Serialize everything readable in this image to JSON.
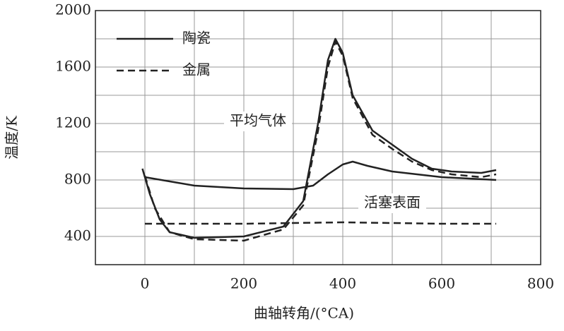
{
  "chart_data": {
    "type": "line",
    "x_label": "曲轴转角/(°CA)",
    "y_label": "温度/K",
    "xlim": [
      -100,
      800
    ],
    "ylim": [
      200,
      2000
    ],
    "xticks": [
      0,
      200,
      400,
      600,
      800
    ],
    "yticks": [
      400,
      800,
      1200,
      1600,
      2000
    ],
    "x_minor_grid": [
      -100,
      100,
      300,
      500,
      700
    ],
    "y_minor_grid": [
      600,
      1000,
      1400,
      1800
    ],
    "grid": true,
    "color": "#222222",
    "legend": [
      {
        "label": "陶瓷",
        "dash": "solid"
      },
      {
        "label": "金属",
        "dash": "dashed"
      }
    ],
    "annotations": [
      "平均气体",
      "活塞表面"
    ],
    "series": [
      {
        "dash": "solid",
        "x": [
          -5,
          10,
          30,
          50,
          100,
          200,
          280,
          320,
          350,
          370,
          385,
          400,
          420,
          460,
          500,
          540,
          580,
          620,
          680,
          710
        ],
        "values": [
          880,
          700,
          520,
          430,
          390,
          400,
          470,
          650,
          1200,
          1650,
          1800,
          1700,
          1400,
          1150,
          1050,
          950,
          880,
          860,
          850,
          870
        ]
      },
      {
        "dash": "dashed",
        "x": [
          0,
          20,
          50,
          100,
          200,
          280,
          320,
          350,
          370,
          385,
          400,
          420,
          460,
          500,
          540,
          580,
          620,
          680,
          710
        ],
        "values": [
          830,
          600,
          430,
          380,
          370,
          450,
          620,
          1150,
          1600,
          1780,
          1680,
          1380,
          1120,
          1020,
          930,
          870,
          840,
          820,
          840
        ]
      },
      {
        "dash": "solid",
        "x": [
          0,
          50,
          100,
          200,
          300,
          340,
          370,
          400,
          420,
          450,
          500,
          600,
          710
        ],
        "values": [
          820,
          790,
          760,
          740,
          735,
          760,
          840,
          910,
          930,
          900,
          860,
          820,
          800
        ]
      },
      {
        "dash": "dashed",
        "x": [
          0,
          200,
          400,
          600,
          710
        ],
        "values": [
          490,
          490,
          500,
          490,
          490
        ]
      }
    ]
  }
}
